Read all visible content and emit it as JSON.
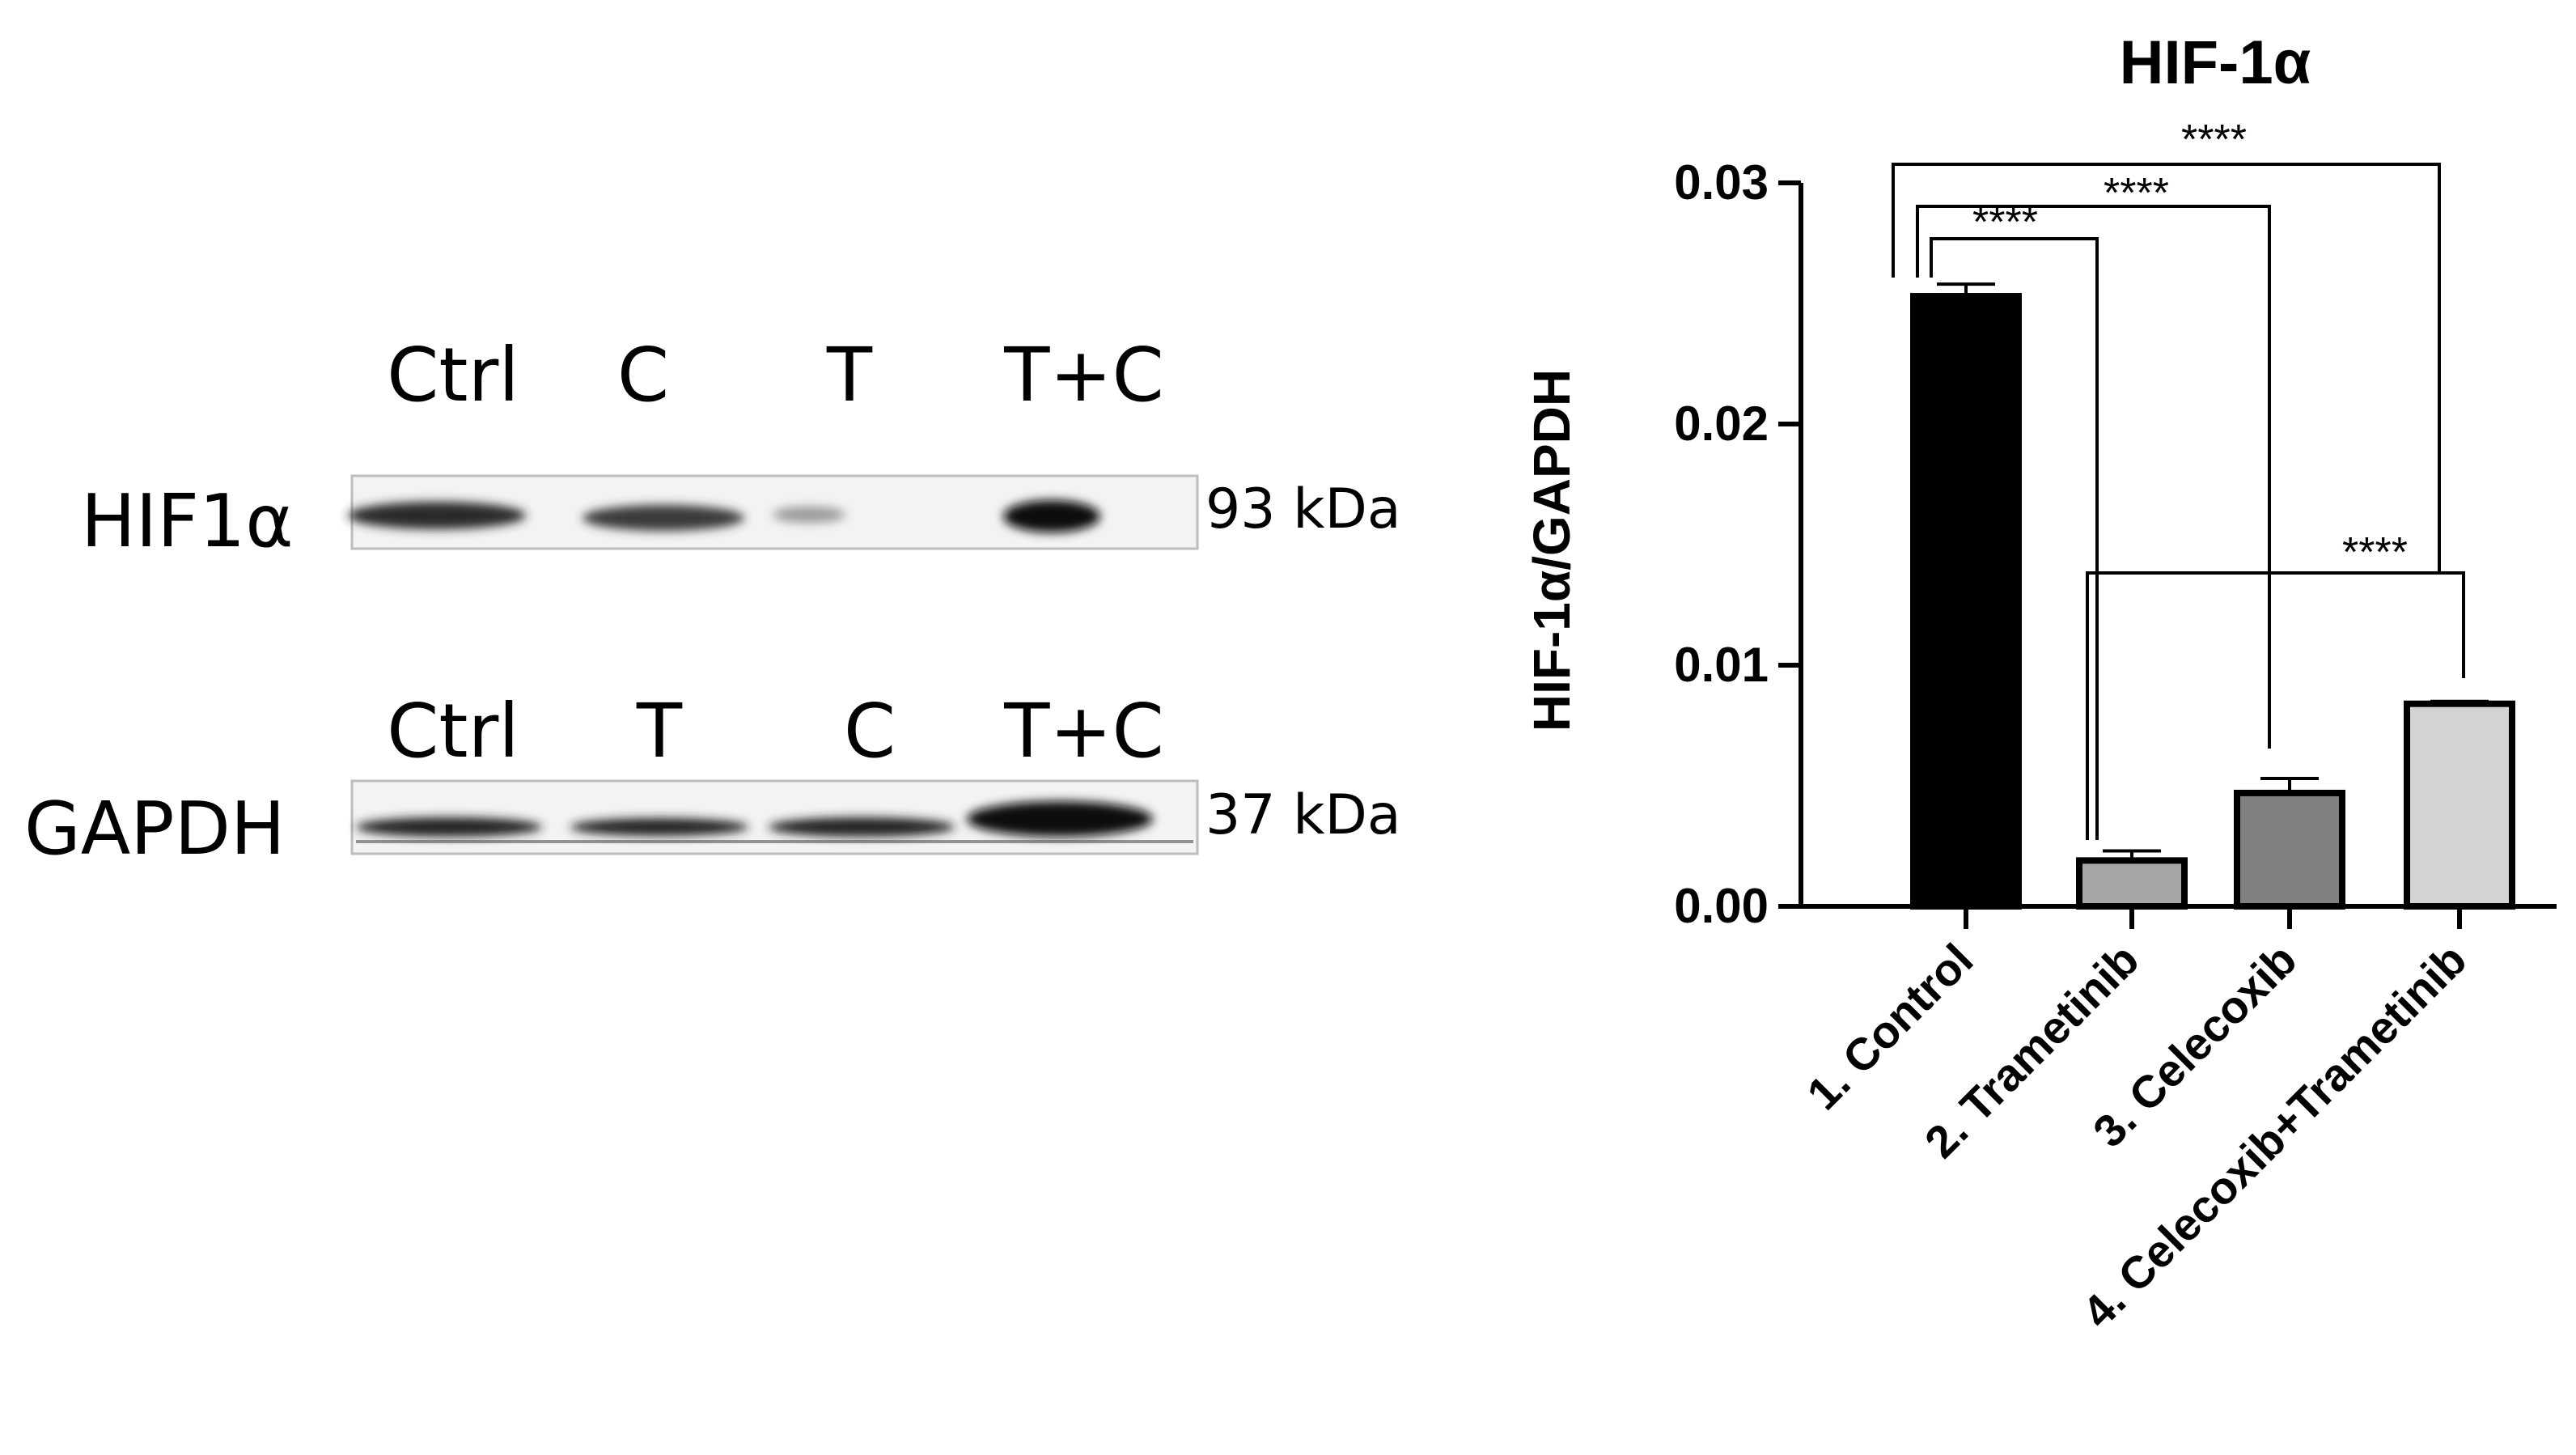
{
  "blot": {
    "top_lanes": [
      "Ctrl",
      "C",
      "T",
      "T+C"
    ],
    "bottom_lanes": [
      "Ctrl",
      "T",
      "C",
      "T+C"
    ],
    "rows": [
      {
        "label": "HIF1α",
        "kda": "93 kDa"
      },
      {
        "label": "GAPDH",
        "kda": "37 kDa"
      }
    ]
  },
  "chart_data": {
    "type": "bar",
    "title": "HIF-1α",
    "xlabel": "",
    "ylabel": "HIF-1α/GAPDH",
    "ylim": [
      0,
      0.03
    ],
    "yticks": [
      "0.00",
      "0.01",
      "0.02",
      "0.03"
    ],
    "categories": [
      "1. Control",
      "2. Trametinib",
      "3. Celecoxib",
      "4. Celecoxib+Trametinib"
    ],
    "values": [
      0.0253,
      0.0019,
      0.0047,
      0.0084
    ],
    "errors": [
      0.0005,
      0.0004,
      0.0006,
      0.0001
    ],
    "colors": [
      "#000000",
      "#a6a6a6",
      "#808080",
      "#d3d3d3"
    ],
    "comparisons": [
      {
        "from": 0,
        "to": 3,
        "label": "****"
      },
      {
        "from": 0,
        "to": 2,
        "label": "****"
      },
      {
        "from": 0,
        "to": 1,
        "label": "****"
      },
      {
        "from": 1,
        "to": 3,
        "label": "****"
      }
    ]
  }
}
